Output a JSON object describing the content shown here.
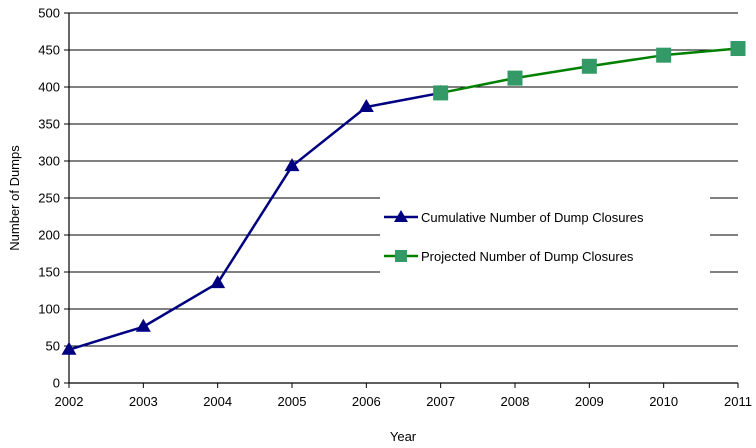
{
  "chart_data": {
    "type": "line",
    "title": "",
    "xlabel": "Year",
    "ylabel": "Number of Dumps",
    "x_categories": [
      "2002",
      "2003",
      "2004",
      "2005",
      "2006",
      "2007",
      "2008",
      "2009",
      "2010",
      "2011"
    ],
    "ylim": [
      0,
      500
    ],
    "y_ticks": [
      0,
      50,
      100,
      150,
      200,
      250,
      300,
      350,
      400,
      450,
      500
    ],
    "grid": true,
    "legend_position": "right",
    "series": [
      {
        "name": "Cumulative Number of Dump Closures",
        "color": "#000080",
        "marker": "triangle",
        "x": [
          "2002",
          "2003",
          "2004",
          "2005",
          "2006",
          "2007"
        ],
        "values": [
          45,
          76,
          135,
          293,
          373,
          392
        ]
      },
      {
        "name": "Projected Number of Dump Closures",
        "color": "#008000",
        "marker_color": "#339966",
        "marker": "square",
        "x": [
          "2007",
          "2008",
          "2009",
          "2010",
          "2011"
        ],
        "values": [
          392,
          412,
          428,
          443,
          452
        ]
      }
    ]
  }
}
